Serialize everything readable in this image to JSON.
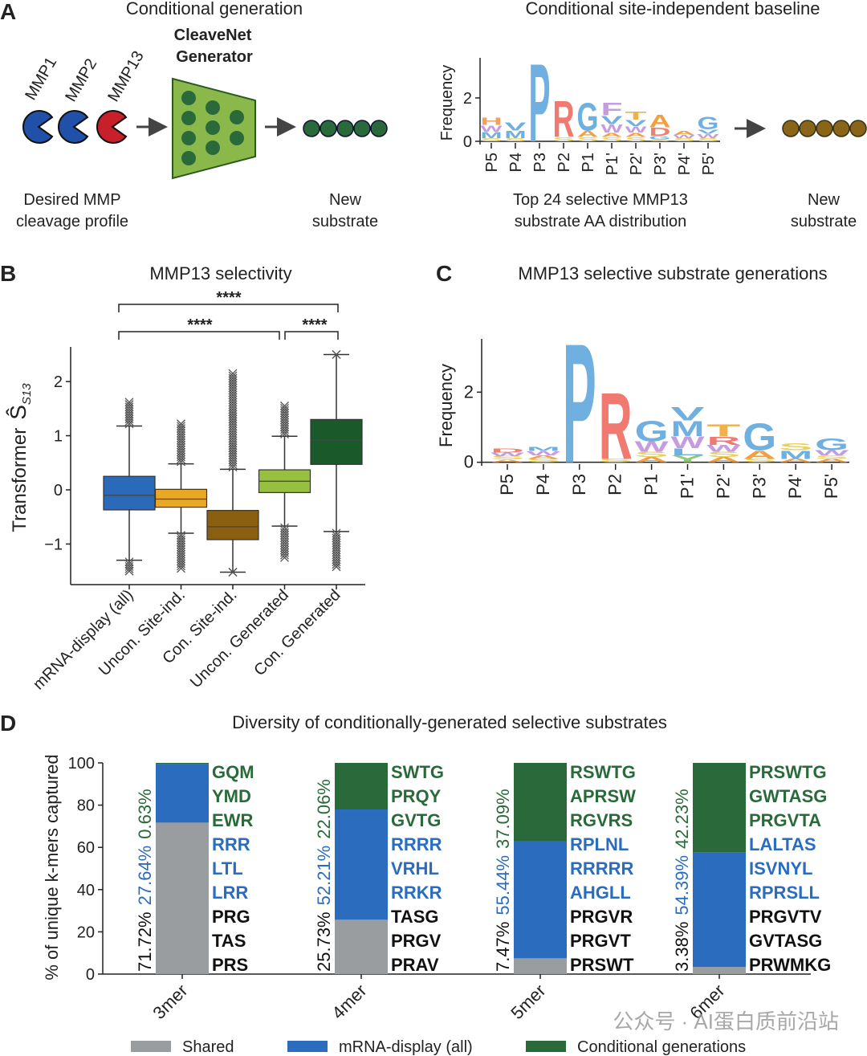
{
  "panel_a": {
    "panel": "A",
    "title": "Conditional generation",
    "model": [
      "CleaveNet",
      "Generator"
    ],
    "enzymes": [
      "MMP1",
      "MMP2",
      "MMP13"
    ],
    "input_label": [
      "Desired MMP",
      "cleavage profile"
    ],
    "output_label": [
      "New",
      "substrate"
    ],
    "baseline_output_label": [
      "New",
      "substrate"
    ]
  },
  "chart_data": [
    {
      "type": "logo",
      "title": "Conditional site-independent baseline",
      "ylabel": "Frequency",
      "caption": [
        "Top 24 selective MMP13",
        "substrate AA distribution"
      ],
      "categories": [
        "P5",
        "P4",
        "P3",
        "P2",
        "P1",
        "P1'",
        "P2'",
        "P3'",
        "P4'",
        "P5'"
      ],
      "ylim": [
        -0.15,
        3.85
      ],
      "yticks": [
        0,
        2
      ],
      "letter_colors": {
        "P": "#6fb0e0",
        "R": "#f07a70",
        "G": "#6fb0e0",
        "V": "#6fb0e0",
        "M": "#6fb0e0",
        "L": "#6fb0e0",
        "W": "#c79be0",
        "F": "#c79be0",
        "T": "#f0b04a",
        "A": "#f0a040",
        "S": "#e8d060",
        "H": "#f0a060",
        "D": "#f08070",
        "Y": "#90c870"
      },
      "stacks": [
        [
          {
            "letter": "S",
            "height": 0.15
          },
          {
            "letter": "M",
            "height": 0.3
          },
          {
            "letter": "W",
            "height": 0.3
          },
          {
            "letter": "H",
            "height": 0.35
          }
        ],
        [
          {
            "letter": "S",
            "height": 0.15
          },
          {
            "letter": "M",
            "height": 0.35
          },
          {
            "letter": "V",
            "height": 0.4
          }
        ],
        [
          {
            "letter": "P",
            "height": 3.7
          }
        ],
        [
          {
            "letter": "S",
            "height": 0.2
          },
          {
            "letter": "R",
            "height": 1.7
          }
        ],
        [
          {
            "letter": "S",
            "height": 0.2
          },
          {
            "letter": "A",
            "height": 0.3
          },
          {
            "letter": "G",
            "height": 1.3
          }
        ],
        [
          {
            "letter": "S",
            "height": 0.2
          },
          {
            "letter": "A",
            "height": 0.2
          },
          {
            "letter": "W",
            "height": 0.4
          },
          {
            "letter": "V",
            "height": 0.4
          },
          {
            "letter": "F",
            "height": 0.6
          }
        ],
        [
          {
            "letter": "S",
            "height": 0.2
          },
          {
            "letter": "A",
            "height": 0.2
          },
          {
            "letter": "W",
            "height": 0.3
          },
          {
            "letter": "V",
            "height": 0.3
          },
          {
            "letter": "T",
            "height": 0.4
          }
        ],
        [
          {
            "letter": "S",
            "height": 0.1
          },
          {
            "letter": "G",
            "height": 0.15
          },
          {
            "letter": "D",
            "height": 0.4
          },
          {
            "letter": "A",
            "height": 0.6
          }
        ],
        [
          {
            "letter": "S",
            "height": 0.15
          },
          {
            "letter": "W",
            "height": 0.15
          },
          {
            "letter": "A",
            "height": 0.2
          }
        ],
        [
          {
            "letter": "S",
            "height": 0.15
          },
          {
            "letter": "W",
            "height": 0.2
          },
          {
            "letter": "V",
            "height": 0.2
          },
          {
            "letter": "G",
            "height": 0.6
          }
        ]
      ]
    },
    {
      "type": "box",
      "panel": "B",
      "title": "MMP13 selectivity",
      "ylabel": "Transformer",
      "ylabel_symbol": "Ŝ",
      "ylabel_subscript": "S13",
      "categories": [
        "mRNA-display (all)",
        "Uncon. Site-ind.",
        "Con. Site-ind.",
        "Uncon. Generated",
        "Con. Generated"
      ],
      "colors": [
        "#2a6ab8",
        "#e8a825",
        "#8a6010",
        "#98c040",
        "#1a5a2a"
      ],
      "ylim": [
        -1.75,
        2.64
      ],
      "yticks": [
        {
          "value": -1,
          "label": "−1"
        },
        0,
        1,
        2
      ],
      "boxes": [
        {
          "low": -1.3,
          "q1": -0.37,
          "median": -0.1,
          "q3": 0.25,
          "high": 1.18,
          "outliers_low": [
            -1.5,
            -1.33
          ],
          "outliers_high": [
            1.22,
            1.62
          ]
        },
        {
          "low": -0.8,
          "q1": -0.32,
          "median": -0.17,
          "q3": 0.01,
          "high": 0.48,
          "outliers_low": [
            -1.45,
            -0.84
          ],
          "outliers_high": [
            0.52,
            1.22
          ]
        },
        {
          "low": -1.52,
          "q1": -0.92,
          "median": -0.68,
          "q3": -0.38,
          "high": 0.38,
          "outliers_low": [
            -1.52,
            -1.52
          ],
          "outliers_high": [
            0.42,
            2.15
          ]
        },
        {
          "low": -0.67,
          "q1": -0.05,
          "median": 0.16,
          "q3": 0.37,
          "high": 0.99,
          "outliers_low": [
            -1.25,
            -0.7
          ],
          "outliers_high": [
            1.03,
            1.55
          ]
        },
        {
          "low": -0.77,
          "q1": 0.47,
          "median": 0.92,
          "q3": 1.3,
          "high": 2.5,
          "outliers_low": [
            -1.42,
            -0.8
          ],
          "outliers_high": [
            2.5,
            2.5
          ]
        }
      ],
      "significance_labels": [
        "****",
        "****",
        "****"
      ]
    },
    {
      "type": "logo",
      "panel": "C",
      "title": "MMP13 selective substrate generations",
      "ylabel": "Frequency",
      "categories": [
        "P5",
        "P4",
        "P3",
        "P2",
        "P1",
        "P1'",
        "P2'",
        "P3'",
        "P4'",
        "P5'"
      ],
      "ylim": [
        -0.1,
        3.52
      ],
      "yticks": [
        0,
        2
      ],
      "letter_colors": {
        "P": "#6fb0e0",
        "R": "#f07a70",
        "G": "#6fb0e0",
        "V": "#6fb0e0",
        "M": "#6fb0e0",
        "L": "#6fb0e0",
        "W": "#c79be0",
        "T": "#f0b04a",
        "A": "#f0a040",
        "S": "#e8d060",
        "D": "#f08070",
        "Y": "#90c870"
      },
      "stacks": [
        [
          {
            "letter": "A",
            "height": 0.08
          },
          {
            "letter": "S",
            "height": 0.1
          },
          {
            "letter": "W",
            "height": 0.1
          },
          {
            "letter": "D",
            "height": 0.12
          }
        ],
        [
          {
            "letter": "S",
            "height": 0.1
          },
          {
            "letter": "A",
            "height": 0.1
          },
          {
            "letter": "W",
            "height": 0.12
          },
          {
            "letter": "M",
            "height": 0.12
          }
        ],
        [
          {
            "letter": "P",
            "height": 3.5
          }
        ],
        [
          {
            "letter": "S",
            "height": 0.1
          },
          {
            "letter": "R",
            "height": 1.95
          }
        ],
        [
          {
            "letter": "A",
            "height": 0.15
          },
          {
            "letter": "S",
            "height": 0.15
          },
          {
            "letter": "W",
            "height": 0.3
          },
          {
            "letter": "G",
            "height": 0.6
          }
        ],
        [
          {
            "letter": "Y",
            "height": 0.2
          },
          {
            "letter": "L",
            "height": 0.2
          },
          {
            "letter": "W",
            "height": 0.35
          },
          {
            "letter": "M",
            "height": 0.45
          },
          {
            "letter": "V",
            "height": 0.4
          }
        ],
        [
          {
            "letter": "A",
            "height": 0.15
          },
          {
            "letter": "S",
            "height": 0.15
          },
          {
            "letter": "W",
            "height": 0.2
          },
          {
            "letter": "R",
            "height": 0.25
          },
          {
            "letter": "T",
            "height": 0.35
          }
        ],
        [
          {
            "letter": "S",
            "height": 0.1
          },
          {
            "letter": "A",
            "height": 0.25
          },
          {
            "letter": "G",
            "height": 0.8
          }
        ],
        [
          {
            "letter": "A",
            "height": 0.1
          },
          {
            "letter": "M",
            "height": 0.25
          },
          {
            "letter": "S",
            "height": 0.2
          }
        ],
        [
          {
            "letter": "A",
            "height": 0.1
          },
          {
            "letter": "S",
            "height": 0.1
          },
          {
            "letter": "W",
            "height": 0.15
          },
          {
            "letter": "G",
            "height": 0.35
          }
        ]
      ]
    },
    {
      "type": "stacked_bar",
      "panel": "D",
      "title": "Diversity of conditionally-generated selective substrates",
      "ylabel": "% of unique k-mers captured",
      "categories": [
        "3mer",
        "4mer",
        "5mer",
        "6mer"
      ],
      "ylim": [
        0,
        100
      ],
      "yticks": [
        0,
        20,
        40,
        60,
        80,
        100
      ],
      "series": [
        {
          "name": "Shared",
          "color": "#999da0",
          "values": [
            71.72,
            25.73,
            7.47,
            3.38
          ],
          "value_labels": [
            "71.72%",
            "25.73%",
            "7.47%",
            "3.38%"
          ]
        },
        {
          "name": "mRNA-display (all)",
          "color": "#2b6cbf",
          "values": [
            27.64,
            52.21,
            55.44,
            54.39
          ],
          "value_labels": [
            "27.64%",
            "52.21%",
            "55.44%",
            "54.39%"
          ]
        },
        {
          "name": "Conditional generations",
          "color": "#2a6a3a",
          "values": [
            0.63,
            22.06,
            37.09,
            42.23
          ],
          "value_labels": [
            "0.63%",
            "22.06%",
            "37.09%",
            "42.23%"
          ]
        }
      ],
      "kmer_lists": [
        {
          "conditional": [
            "GQM",
            "YMD",
            "EWR"
          ],
          "mrna": [
            "RRR",
            "LTL",
            "LRR"
          ],
          "shared": [
            "PRG",
            "TAS",
            "PRS"
          ]
        },
        {
          "conditional": [
            "SWTG",
            "PRQY",
            "GVTG"
          ],
          "mrna": [
            "RRRR",
            "VRHL",
            "RRKR"
          ],
          "shared": [
            "TASG",
            "PRGV",
            "PRAV"
          ]
        },
        {
          "conditional": [
            "RSWTG",
            "APRSW",
            "RGVRS"
          ],
          "mrna": [
            "RPLNL",
            "RRRRR",
            "AHGLL"
          ],
          "shared": [
            "PRGVR",
            "PRGVT",
            "PRSWT"
          ]
        },
        {
          "conditional": [
            "PRSWTG",
            "GWTASG",
            "PRGVTA"
          ],
          "mrna": [
            "LALTAS",
            "ISVNYL",
            "RPRSLL"
          ],
          "shared": [
            "PRGVTV",
            "GVTASG",
            "PRWMKG"
          ]
        }
      ],
      "watermark": "公众号 · AI蛋白质前沿站"
    }
  ]
}
